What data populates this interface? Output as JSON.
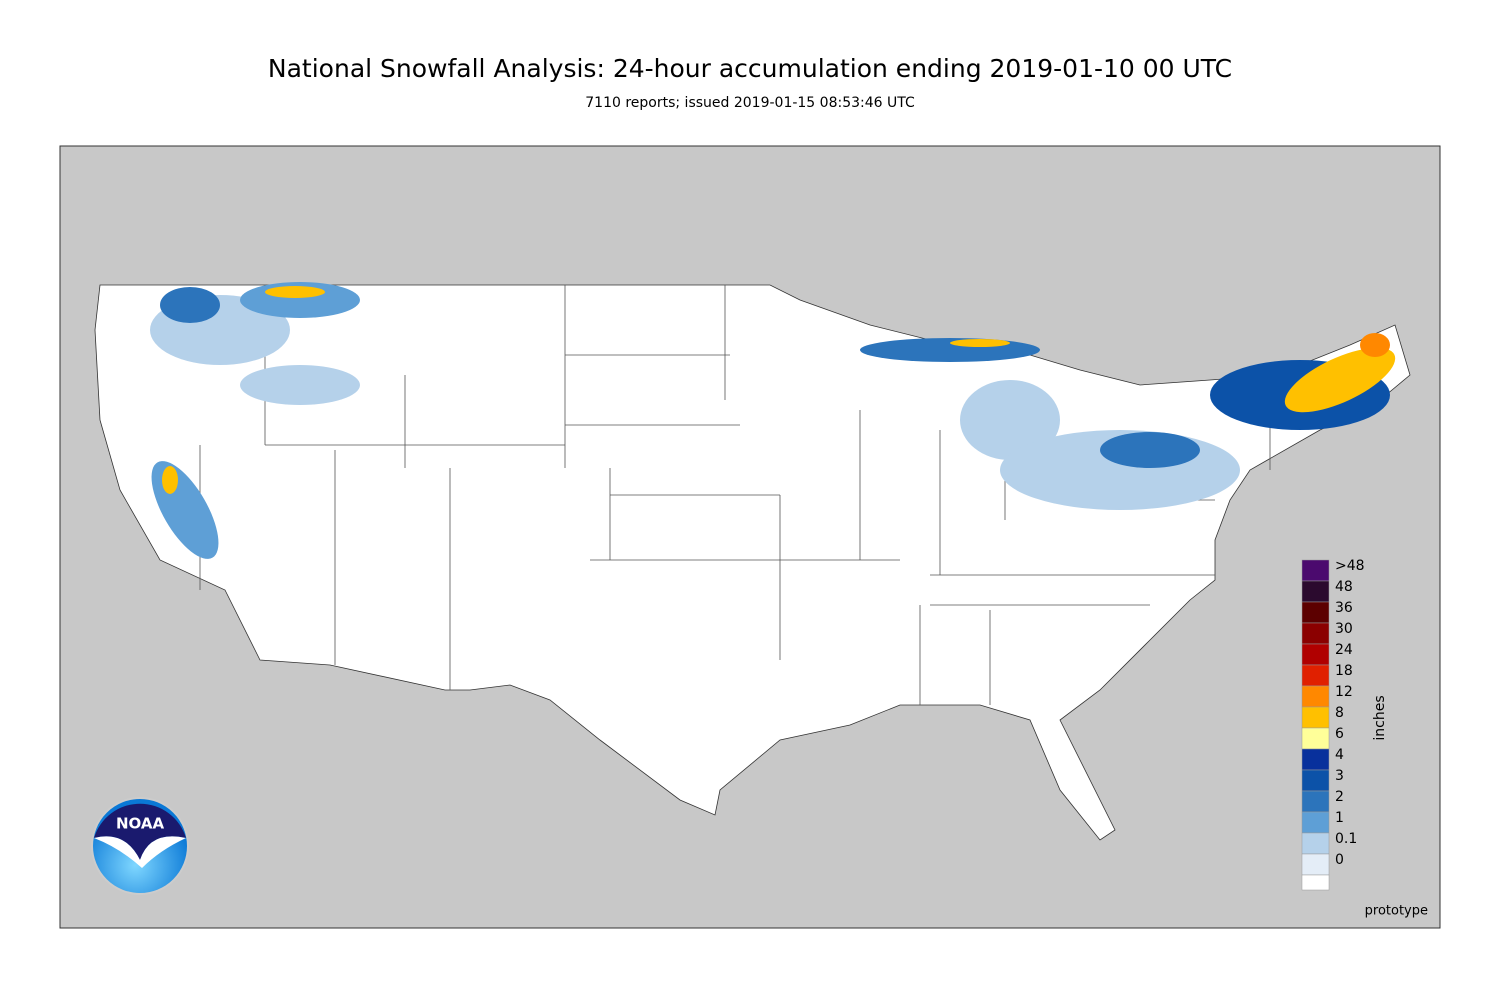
{
  "header": {
    "title": "National Snowfall Analysis: 24-hour accumulation ending 2019-01-10 00 UTC",
    "subtitle": "7110 reports; issued 2019-01-15 08:53:46 UTC"
  },
  "legend": {
    "title": "inches",
    "items": [
      {
        "label": ">48",
        "color": "#4b0a6e"
      },
      {
        "label": "48",
        "color": "#2b0a2e"
      },
      {
        "label": "36",
        "color": "#5c0000"
      },
      {
        "label": "30",
        "color": "#8b0000"
      },
      {
        "label": "24",
        "color": "#b00000"
      },
      {
        "label": "18",
        "color": "#e02000"
      },
      {
        "label": "12",
        "color": "#ff8800"
      },
      {
        "label": "8",
        "color": "#ffc000"
      },
      {
        "label": "6",
        "color": "#ffff99"
      },
      {
        "label": "4",
        "color": "#08309c"
      },
      {
        "label": "3",
        "color": "#0c52a8"
      },
      {
        "label": "2",
        "color": "#2c74bb"
      },
      {
        "label": "1",
        "color": "#5e9fd6"
      },
      {
        "label": "0.1",
        "color": "#b5d1ea"
      },
      {
        "label": "0",
        "color": "#e4edf7"
      }
    ]
  },
  "footer": {
    "note": "prototype"
  },
  "logo": {
    "text": "NOAA"
  }
}
